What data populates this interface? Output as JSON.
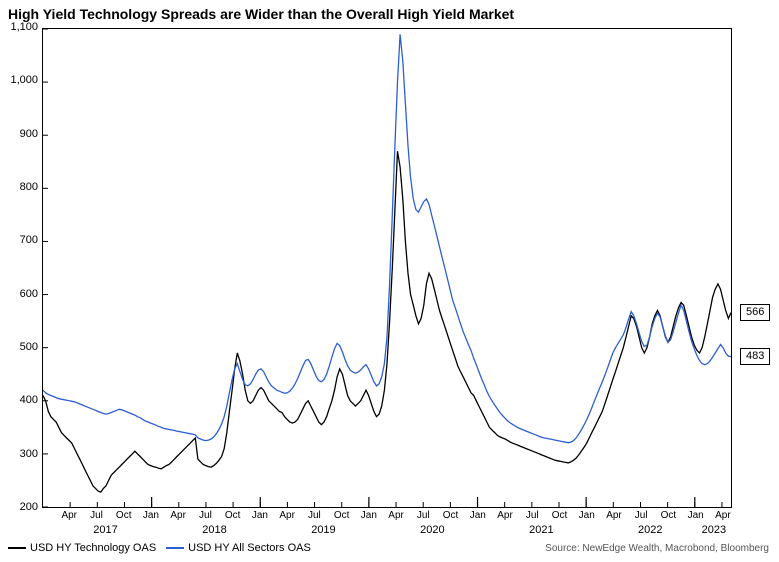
{
  "title": "High Yield Technology Spreads are Wider than the Overall High Yield Market",
  "chart": {
    "type": "line",
    "background_color": "#ffffff",
    "border_color": "#000000",
    "title_fontsize": 14,
    "axis_fontsize": 11,
    "ylim": [
      200,
      1100
    ],
    "ytick_step": 100,
    "yticks": [
      200,
      300,
      400,
      500,
      600,
      700,
      800,
      900,
      1000,
      1100
    ],
    "xlim": [
      "2017-01",
      "2023-05"
    ],
    "month_ticks": [
      "Apr",
      "Jul",
      "Oct",
      "Jan",
      "Apr",
      "Jul",
      "Oct",
      "Jan",
      "Apr",
      "Jul",
      "Oct",
      "Jan",
      "Apr",
      "Jul",
      "Oct",
      "Jan",
      "Apr",
      "Jul",
      "Oct",
      "Jan",
      "Apr",
      "Jul",
      "Oct",
      "Jan",
      "Apr"
    ],
    "year_labels": [
      "2017",
      "2018",
      "2019",
      "2020",
      "2021",
      "2022",
      "2023"
    ],
    "line_width": 1.3,
    "series": [
      {
        "name": "USD HY Technology OAS",
        "color": "#000000",
        "end_value": 566,
        "data": [
          410,
          400,
          380,
          370,
          365,
          360,
          350,
          340,
          335,
          330,
          325,
          320,
          310,
          300,
          290,
          280,
          270,
          260,
          250,
          240,
          235,
          230,
          228,
          235,
          240,
          250,
          260,
          265,
          270,
          275,
          280,
          285,
          290,
          295,
          300,
          305,
          300,
          295,
          290,
          285,
          280,
          278,
          276,
          275,
          273,
          272,
          275,
          278,
          280,
          285,
          290,
          295,
          300,
          305,
          310,
          315,
          320,
          325,
          330,
          290,
          285,
          280,
          278,
          276,
          275,
          278,
          282,
          288,
          295,
          310,
          340,
          380,
          420,
          460,
          490,
          475,
          450,
          420,
          400,
          395,
          400,
          410,
          420,
          425,
          420,
          410,
          400,
          395,
          390,
          385,
          380,
          378,
          370,
          365,
          360,
          358,
          360,
          365,
          375,
          385,
          395,
          400,
          390,
          380,
          370,
          360,
          355,
          360,
          370,
          385,
          400,
          420,
          445,
          460,
          450,
          430,
          410,
          400,
          395,
          390,
          395,
          400,
          410,
          420,
          410,
          395,
          380,
          370,
          375,
          390,
          420,
          470,
          550,
          650,
          760,
          870,
          840,
          780,
          700,
          640,
          600,
          580,
          560,
          545,
          555,
          580,
          620,
          640,
          630,
          610,
          590,
          570,
          555,
          540,
          525,
          510,
          495,
          480,
          465,
          455,
          445,
          435,
          425,
          415,
          410,
          400,
          390,
          380,
          370,
          360,
          350,
          345,
          340,
          335,
          332,
          330,
          328,
          325,
          322,
          320,
          318,
          316,
          314,
          312,
          310,
          308,
          306,
          304,
          302,
          300,
          298,
          296,
          294,
          292,
          290,
          288,
          287,
          286,
          285,
          284,
          283,
          285,
          288,
          292,
          298,
          305,
          312,
          320,
          330,
          340,
          350,
          360,
          370,
          380,
          395,
          410,
          425,
          440,
          455,
          470,
          485,
          500,
          520,
          540,
          560,
          555,
          540,
          520,
          500,
          490,
          500,
          520,
          545,
          560,
          570,
          560,
          540,
          520,
          510,
          520,
          540,
          560,
          575,
          585,
          580,
          560,
          540,
          520,
          505,
          495,
          490,
          500,
          520,
          545,
          570,
          595,
          610,
          620,
          610,
          590,
          570,
          555,
          566
        ]
      },
      {
        "name": "USD HY All Sectors OAS",
        "color": "#2d5fd1",
        "end_value": 483,
        "data": [
          420,
          415,
          412,
          410,
          408,
          406,
          404,
          403,
          402,
          401,
          400,
          399,
          398,
          396,
          394,
          392,
          390,
          388,
          386,
          384,
          382,
          380,
          378,
          376,
          375,
          376,
          378,
          380,
          382,
          384,
          383,
          381,
          379,
          377,
          375,
          373,
          370,
          368,
          365,
          362,
          360,
          358,
          356,
          354,
          352,
          350,
          348,
          347,
          346,
          345,
          344,
          343,
          342,
          341,
          340,
          339,
          338,
          337,
          336,
          330,
          328,
          326,
          325,
          326,
          328,
          332,
          338,
          346,
          356,
          370,
          390,
          415,
          440,
          460,
          470,
          455,
          440,
          430,
          428,
          432,
          440,
          450,
          458,
          460,
          455,
          445,
          435,
          428,
          424,
          420,
          418,
          416,
          414,
          415,
          418,
          424,
          432,
          442,
          454,
          466,
          476,
          478,
          470,
          458,
          446,
          438,
          436,
          440,
          450,
          465,
          482,
          498,
          508,
          504,
          492,
          478,
          466,
          458,
          454,
          452,
          454,
          458,
          464,
          468,
          460,
          448,
          436,
          428,
          432,
          445,
          470,
          520,
          620,
          750,
          880,
          1000,
          1090,
          1040,
          960,
          880,
          820,
          780,
          760,
          755,
          765,
          775,
          780,
          770,
          750,
          730,
          710,
          690,
          670,
          650,
          630,
          610,
          590,
          575,
          560,
          545,
          530,
          518,
          506,
          495,
          480,
          468,
          455,
          442,
          430,
          418,
          408,
          400,
          392,
          385,
          378,
          372,
          367,
          362,
          358,
          355,
          352,
          349,
          347,
          345,
          343,
          341,
          339,
          337,
          335,
          333,
          331,
          330,
          329,
          328,
          327,
          326,
          325,
          324,
          323,
          322,
          321,
          322,
          325,
          330,
          337,
          345,
          354,
          364,
          375,
          387,
          400,
          412,
          424,
          436,
          449,
          462,
          476,
          490,
          500,
          508,
          516,
          524,
          538,
          554,
          568,
          560,
          545,
          528,
          512,
          502,
          505,
          520,
          540,
          555,
          565,
          558,
          540,
          522,
          510,
          515,
          530,
          548,
          565,
          580,
          570,
          550,
          530,
          512,
          498,
          485,
          476,
          470,
          468,
          470,
          475,
          482,
          490,
          498,
          506,
          500,
          490,
          484,
          483
        ]
      }
    ]
  },
  "legend_items": [
    {
      "label": "USD HY Technology OAS",
      "color": "#000000"
    },
    {
      "label": "USD HY All Sectors OAS",
      "color": "#2d5fd1"
    }
  ],
  "source": "Source: NewEdge Wealth, Macrobond, Bloomberg"
}
